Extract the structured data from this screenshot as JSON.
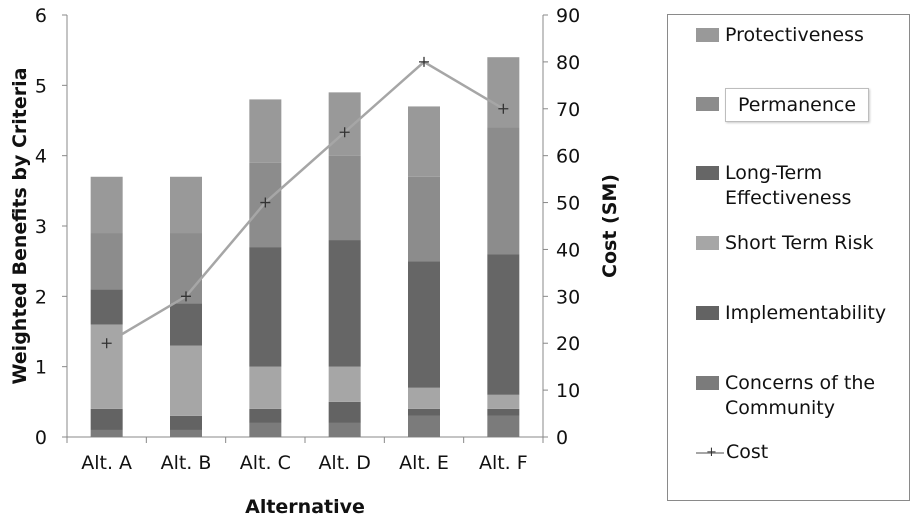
{
  "chart_data": {
    "type": "bar",
    "stacked": true,
    "categories": [
      "Alt. A",
      "Alt. B",
      "Alt. C",
      "Alt. D",
      "Alt. E",
      "Alt. F"
    ],
    "xlabel": "Alternative",
    "ylabel": "Weighted Benefits by Criteria",
    "y2label": "Cost (SM)",
    "ylim": [
      0,
      6
    ],
    "yticks": [
      "0",
      "1",
      "2",
      "3",
      "4",
      "5",
      "6"
    ],
    "y2lim": [
      0,
      90
    ],
    "y2ticks": [
      "0",
      "10",
      "20",
      "30",
      "40",
      "50",
      "60",
      "70",
      "80",
      "90"
    ],
    "series": [
      {
        "name": "Concerns of the Community",
        "values": [
          0.1,
          0.1,
          0.2,
          0.2,
          0.3,
          0.3
        ],
        "color": "#7b7b7b"
      },
      {
        "name": "Implementability",
        "values": [
          0.3,
          0.2,
          0.2,
          0.3,
          0.1,
          0.1
        ],
        "color": "#636363"
      },
      {
        "name": "Short Term Risk",
        "values": [
          1.2,
          1.0,
          0.6,
          0.5,
          0.3,
          0.2
        ],
        "color": "#a6a6a6"
      },
      {
        "name": "Long-Term Effectiveness",
        "values": [
          0.5,
          0.6,
          1.7,
          1.8,
          1.8,
          2.0
        ],
        "color": "#666666"
      },
      {
        "name": "Permanence",
        "values": [
          0.8,
          1.0,
          1.2,
          1.2,
          1.2,
          1.8
        ],
        "color": "#8c8c8c"
      },
      {
        "name": "Protectiveness",
        "values": [
          0.8,
          0.8,
          0.9,
          0.9,
          1.0,
          1.0
        ],
        "color": "#999999"
      }
    ],
    "line_series": {
      "name": "Cost",
      "axis": "right",
      "values": [
        20,
        30,
        50,
        65,
        80,
        70
      ],
      "color": "#a6a6a6"
    },
    "legend_position": "right"
  },
  "legend": {
    "items": [
      {
        "label": "Protectiveness",
        "color": "#999999"
      },
      {
        "label": "Permanence",
        "color": "#8c8c8c"
      },
      {
        "label": "Long-Term Effectiveness",
        "color": "#666666"
      },
      {
        "label": "Short Term Risk",
        "color": "#a6a6a6"
      },
      {
        "label": "Implementability",
        "color": "#636363"
      },
      {
        "label": "Concerns of the Community",
        "color": "#7b7b7b"
      }
    ],
    "line_label": "Cost",
    "line_marker": "+"
  }
}
